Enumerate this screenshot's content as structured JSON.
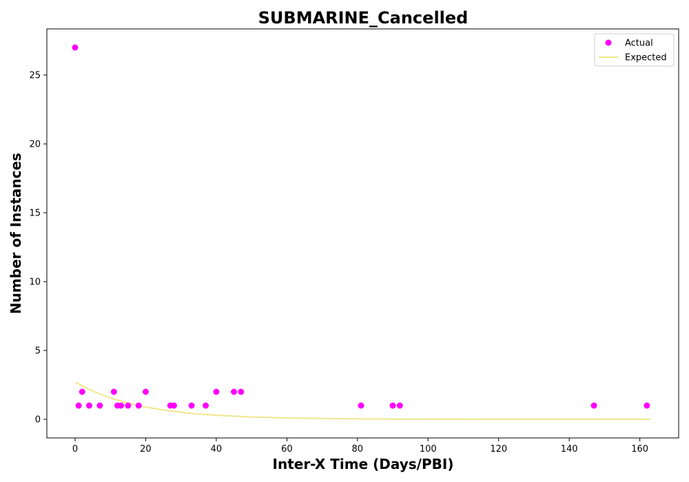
{
  "chart_data": {
    "type": "scatter",
    "title": "SUBMARINE_Cancelled",
    "xlabel": "Inter-X Time (Days/PBI)",
    "ylabel": "Number of Instances",
    "xlim": [
      -8,
      171
    ],
    "ylim": [
      -1.35,
      28.35
    ],
    "xticks": [
      0,
      20,
      40,
      60,
      80,
      100,
      120,
      140,
      160
    ],
    "yticks": [
      0,
      5,
      10,
      15,
      20,
      25
    ],
    "grid": false,
    "legend_position": "top-right",
    "series": [
      {
        "name": "Actual",
        "kind": "scatter",
        "color": "#ff00ff",
        "points": [
          [
            0,
            27
          ],
          [
            1,
            1
          ],
          [
            2,
            2
          ],
          [
            4,
            1
          ],
          [
            7,
            1
          ],
          [
            11,
            2
          ],
          [
            12,
            1
          ],
          [
            13,
            1
          ],
          [
            15,
            1
          ],
          [
            18,
            1
          ],
          [
            20,
            2
          ],
          [
            27,
            1
          ],
          [
            28,
            1
          ],
          [
            33,
            1
          ],
          [
            37,
            1
          ],
          [
            40,
            2
          ],
          [
            45,
            2
          ],
          [
            47,
            2
          ],
          [
            81,
            1
          ],
          [
            90,
            1
          ],
          [
            92,
            1
          ],
          [
            147,
            1
          ],
          [
            162,
            1
          ]
        ]
      },
      {
        "name": "Expected",
        "kind": "line",
        "color": "#f0e68c",
        "points": [
          [
            0,
            2.7
          ],
          [
            5,
            2.05
          ],
          [
            10,
            1.55
          ],
          [
            15,
            1.18
          ],
          [
            20,
            0.89
          ],
          [
            25,
            0.68
          ],
          [
            30,
            0.51
          ],
          [
            35,
            0.39
          ],
          [
            40,
            0.3
          ],
          [
            50,
            0.17
          ],
          [
            60,
            0.1
          ],
          [
            70,
            0.06
          ],
          [
            80,
            0.03
          ],
          [
            90,
            0.02
          ],
          [
            100,
            0.01
          ],
          [
            120,
            0.0
          ],
          [
            140,
            0.0
          ],
          [
            163,
            0.0
          ]
        ]
      }
    ]
  }
}
